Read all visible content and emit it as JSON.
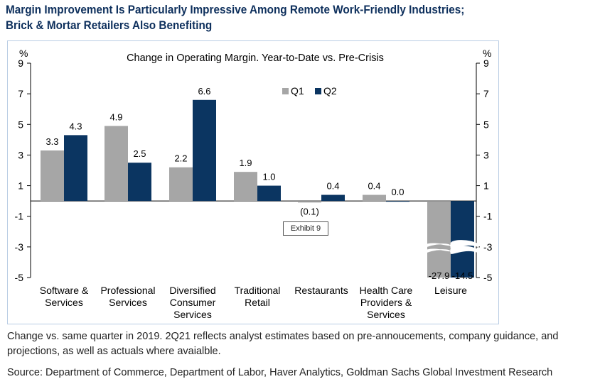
{
  "headline": {
    "line1": "Margin Improvement Is Particularly Impressive Among Remote Work-Friendly Industries;",
    "line2": "Brick & Mortar Retailers Also Benefiting"
  },
  "footnote": "Change vs. same quarter in 2019. 2Q21 reflects analyst estimates based on pre-annoucements, company guidance, and projections, as well as actuals where avaialble.",
  "source": "Source: Department of Commerce, Department of Labor, Haver Analytics, Goldman Sachs Global Investment Research",
  "exhibit_label": "Exhibit 9",
  "chart_data": {
    "type": "bar",
    "title": "Change  in Operating  Margin. Year-to-Date   vs. Pre-Crisis",
    "y_unit_left": "%",
    "y_unit_right": "%",
    "ylim": [
      -5,
      9
    ],
    "yticks": [
      9,
      7,
      5,
      3,
      1,
      -1,
      -3,
      -5
    ],
    "axis_breaks": true,
    "legend_position": "top-center",
    "categories": [
      [
        "Software &",
        "Services"
      ],
      [
        "Professional",
        "Services"
      ],
      [
        "Diversified",
        "Consumer",
        "Services"
      ],
      [
        "Traditional",
        "Retail"
      ],
      [
        "Restaurants"
      ],
      [
        "Health Care",
        "Providers &",
        "Services"
      ],
      [
        "Leisure"
      ]
    ],
    "series": [
      {
        "name": "Q1",
        "color": "#a6a6a6",
        "values": [
          3.3,
          4.9,
          2.2,
          1.9,
          -0.1,
          0.4,
          -27.9
        ],
        "labels": [
          "3.3",
          "4.9",
          "2.2",
          "1.9",
          "(0.1)",
          "0.4",
          "-27.9"
        ]
      },
      {
        "name": "Q2",
        "color": "#0b3561",
        "values": [
          4.3,
          2.5,
          6.6,
          1.0,
          0.4,
          0.0,
          -14.5
        ],
        "labels": [
          "4.3",
          "2.5",
          "6.6",
          "1.0",
          "0.4",
          "0.0",
          "-14.5"
        ]
      }
    ]
  }
}
